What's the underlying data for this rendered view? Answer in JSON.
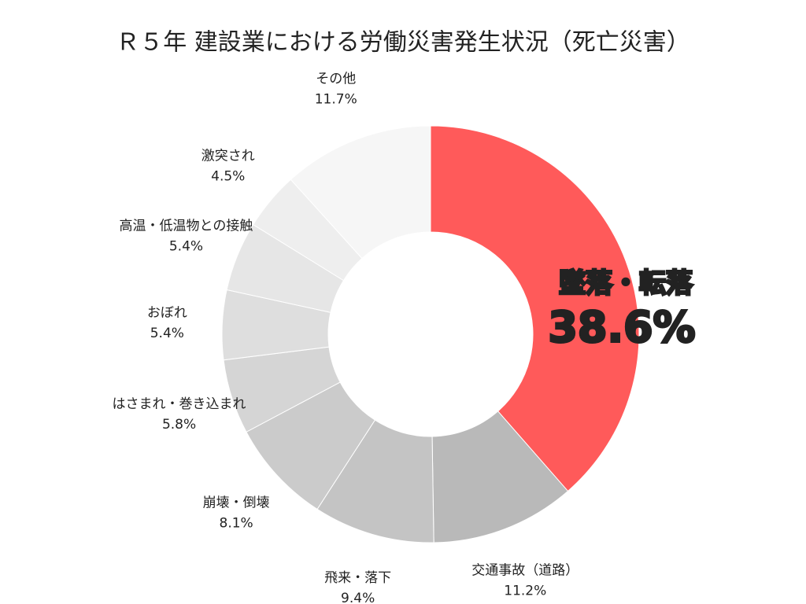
{
  "chart_data": {
    "type": "pie",
    "title": "Ｒ５年 建設業における労働災害発生状況（死亡災害）",
    "categories": [
      "墜落・転落",
      "交通事故（道路）",
      "飛来・落下",
      "崩壊・倒壊",
      "はさまれ・巻き込まれ",
      "おぼれ",
      "高温・低温物との接触",
      "激突され",
      "その他"
    ],
    "values": [
      38.6,
      11.2,
      9.4,
      8.1,
      5.8,
      5.4,
      5.4,
      4.5,
      11.7
    ],
    "value_labels": [
      "38.6%",
      "11.2%",
      "9.4%",
      "8.1%",
      "5.8%",
      "5.4%",
      "5.4%",
      "4.5%",
      "11.7%"
    ],
    "colors": [
      "#ff5a5a",
      "#b9b9b9",
      "#c4c4c4",
      "#cbcbcb",
      "#d5d5d5",
      "#dedede",
      "#e6e6e6",
      "#eeeeee",
      "#f6f6f6"
    ]
  }
}
